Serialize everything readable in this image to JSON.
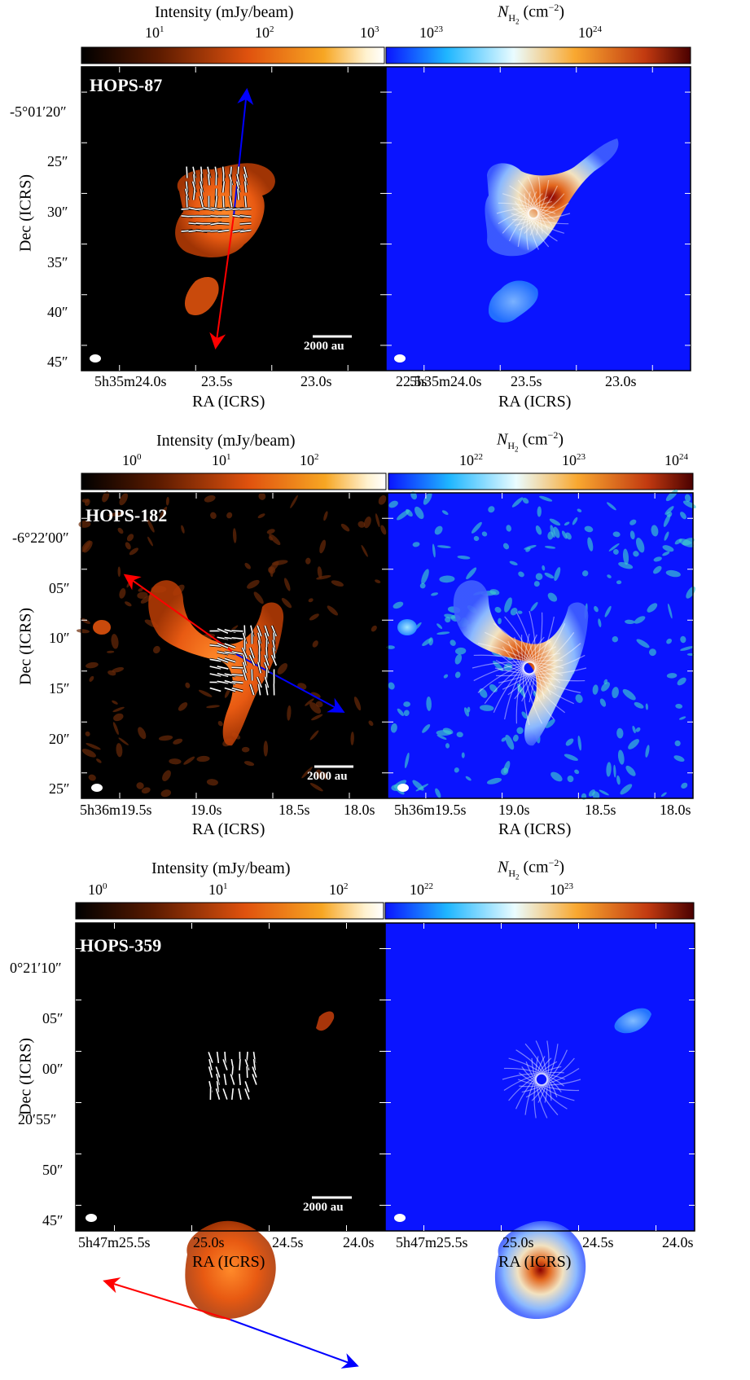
{
  "figure": {
    "rows": [
      {
        "id": "hops87",
        "source": "HOPS-87",
        "cbar_left": {
          "label": "Intensity (mJy/beam)",
          "ticks": [
            "10",
            "10",
            "10"
          ],
          "exps": [
            "1",
            "2",
            "3"
          ]
        },
        "cbar_right": {
          "label_sym": "N",
          "label_sub": "H",
          "label_sub2": "2",
          "label_unit": "(cm",
          "label_exp": "−2",
          "label_close": ")",
          "ticks": [
            "10",
            "10"
          ],
          "exps": [
            "23",
            "24"
          ]
        },
        "dec_label": "Dec (ICRS)",
        "ra_label": "RA (ICRS)",
        "dec_ticks": [
          "-5°01′20″",
          "25″",
          "30″",
          "35″",
          "40″",
          "45″"
        ],
        "ra_ticks": [
          "5h35m24.0s",
          "23.5s",
          "23.0s",
          "22.5s"
        ],
        "scalebar": "2000 au"
      },
      {
        "id": "hops182",
        "source": "HOPS-182",
        "cbar_left": {
          "label": "Intensity (mJy/beam)",
          "ticks": [
            "10",
            "10",
            "10"
          ],
          "exps": [
            "0",
            "1",
            "2"
          ]
        },
        "cbar_right": {
          "label_sym": "N",
          "label_sub": "H",
          "label_sub2": "2",
          "label_unit": "(cm",
          "label_exp": "−2",
          "label_close": ")",
          "ticks": [
            "10",
            "10",
            "10"
          ],
          "exps": [
            "22",
            "23",
            "24"
          ]
        },
        "dec_label": "Dec (ICRS)",
        "ra_label": "RA (ICRS)",
        "dec_ticks": [
          "-6°22′00″",
          "05″",
          "10″",
          "15″",
          "20″",
          "25″"
        ],
        "ra_ticks": [
          "5h36m19.5s",
          "19.0s",
          "18.5s",
          "18.0s"
        ],
        "scalebar": "2000 au"
      },
      {
        "id": "hops359",
        "source": "HOPS-359",
        "cbar_left": {
          "label": "Intensity (mJy/beam)",
          "ticks": [
            "10",
            "10",
            "10"
          ],
          "exps": [
            "0",
            "1",
            "2"
          ]
        },
        "cbar_right": {
          "label_sym": "N",
          "label_sub": "H",
          "label_sub2": "2",
          "label_unit": "(cm",
          "label_exp": "−2",
          "label_close": ")",
          "ticks": [
            "10",
            "10"
          ],
          "exps": [
            "22",
            "23"
          ]
        },
        "dec_label": "Dec (ICRS)",
        "ra_label": "RA (ICRS)",
        "dec_ticks": [
          "0°21′10″",
          "05″",
          "00″",
          "20′55″",
          "50″",
          "45″"
        ],
        "ra_ticks": [
          "5h47m25.5s",
          "25.0s",
          "24.5s",
          "24.0s"
        ],
        "scalebar": "2000 au"
      }
    ],
    "colors": {
      "intensity_cmap": [
        "#000000",
        "#5a1a00",
        "#e0520e",
        "#f7a623",
        "#fff2d0",
        "#ffffff"
      ],
      "column_cmap": [
        "#0a14ff",
        "#1fb6ff",
        "#eafcff",
        "#f9a830",
        "#c23a10",
        "#4a0000"
      ],
      "redshifted_outflow": "#ff0000",
      "blueshifted_outflow": "#0000ff",
      "map_background_right": "#0a14ff",
      "map_background_left": "#000000"
    }
  }
}
